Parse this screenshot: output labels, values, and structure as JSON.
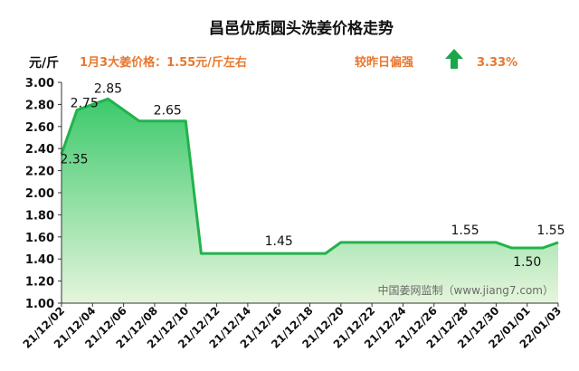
{
  "chart_data": {
    "type": "area",
    "title": "昌邑优质圆头洗姜价格走势",
    "ylabel": "元/斤",
    "info": {
      "price_text": "1月3大姜价格：1.55元/斤左右",
      "trend_text": "较昨日偏强",
      "change_text": "3.33%",
      "trend_icon": "up-arrow-icon"
    },
    "watermark": "中国姜网监制（www.jiang7.com）",
    "ylim": [
      1.0,
      3.0
    ],
    "y_ticks": [
      "1.00",
      "1.20",
      "1.40",
      "1.60",
      "1.80",
      "2.00",
      "2.20",
      "2.40",
      "2.60",
      "2.80",
      "3.00"
    ],
    "x_ticks": [
      "21/12/02",
      "21/12/04",
      "21/12/06",
      "21/12/08",
      "21/12/10",
      "21/12/12",
      "21/12/14",
      "21/12/16",
      "21/12/18",
      "21/12/20",
      "21/12/22",
      "21/12/24",
      "21/12/26",
      "21/12/28",
      "21/12/30",
      "22/01/01",
      "22/01/03"
    ],
    "x": [
      "21/12/02",
      "21/12/03",
      "21/12/04",
      "21/12/05",
      "21/12/06",
      "21/12/07",
      "21/12/08",
      "21/12/09",
      "21/12/10",
      "21/12/11",
      "21/12/12",
      "21/12/13",
      "21/12/14",
      "21/12/15",
      "21/12/16",
      "21/12/17",
      "21/12/18",
      "21/12/19",
      "21/12/20",
      "21/12/21",
      "21/12/22",
      "21/12/23",
      "21/12/24",
      "21/12/25",
      "21/12/26",
      "21/12/27",
      "21/12/28",
      "21/12/29",
      "21/12/30",
      "21/12/31",
      "22/01/01",
      "22/01/02",
      "22/01/03"
    ],
    "values": [
      2.35,
      2.75,
      2.8,
      2.85,
      2.75,
      2.65,
      2.65,
      2.65,
      2.65,
      1.45,
      1.45,
      1.45,
      1.45,
      1.45,
      1.45,
      1.45,
      1.45,
      1.45,
      1.55,
      1.55,
      1.55,
      1.55,
      1.55,
      1.55,
      1.55,
      1.55,
      1.55,
      1.55,
      1.55,
      1.5,
      1.5,
      1.5,
      1.55
    ],
    "data_labels": [
      {
        "index": 0,
        "text": "2.35"
      },
      {
        "index": 1,
        "text": "2.75"
      },
      {
        "index": 3,
        "text": "2.85"
      },
      {
        "index": 8,
        "text": "2.65"
      },
      {
        "index": 14,
        "text": "1.45"
      },
      {
        "index": 26,
        "text": "1.55"
      },
      {
        "index": 30,
        "text": "1.50"
      },
      {
        "index": 32,
        "text": "1.55"
      }
    ],
    "grid": false,
    "colors": {
      "line": "#22b24c",
      "fill_top": "#3cc96b",
      "fill_bottom": "#e6f5dc",
      "axis": "#333333",
      "accent": "#e8772e",
      "arrow": "#1aa64a"
    }
  }
}
